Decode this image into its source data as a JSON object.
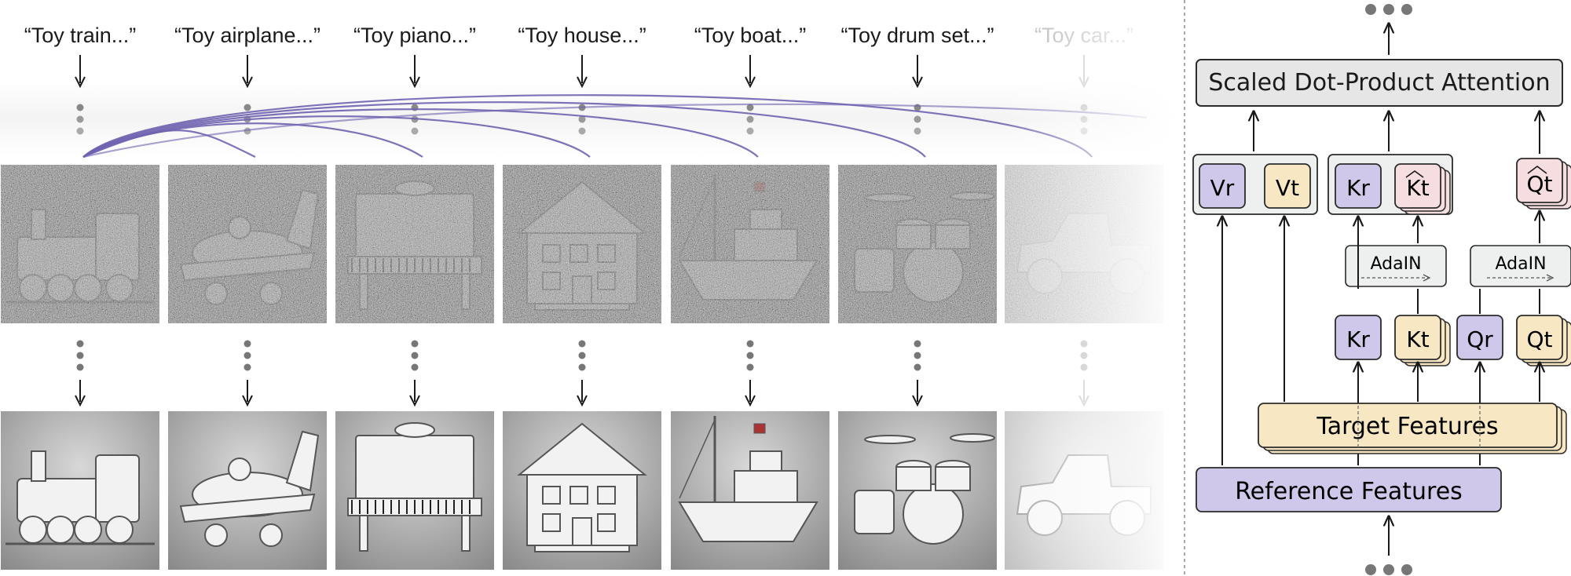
{
  "prompts": [
    "“Toy train...”",
    "“Toy airplane...”",
    "“Toy piano...”",
    "“Toy house...”",
    "“Toy boat...”",
    "“Toy drum set...”",
    "“Toy car...”"
  ],
  "objects": [
    "train-icon",
    "airplane-icon",
    "piano-icon",
    "house-icon",
    "boat-icon",
    "drum-set-icon",
    "car-icon"
  ],
  "colors": {
    "purple_fill": "#cfc8ea",
    "purple_line": "#6f63b0",
    "yellow_fill": "#f8e7c3",
    "pink_fill": "#f6dde0",
    "gray_fill": "#e6e6e6",
    "adain_fill": "#eef0f0",
    "border": "#2b2b2b"
  },
  "attention": {
    "title": "Scaled Dot-Product Attention",
    "v_r": "Vr",
    "v_t": "Vt",
    "k_r": "Kr",
    "k_t_hat": "Kt",
    "q_t_hat": "Qt",
    "adain_left": "AdaIN",
    "adain_right": "AdaIN",
    "k_r2": "Kr",
    "k_t2": "Kt",
    "q_r": "Qr",
    "q_t2": "Qt",
    "target_features": "Target Features",
    "reference_features": "Reference Features"
  }
}
